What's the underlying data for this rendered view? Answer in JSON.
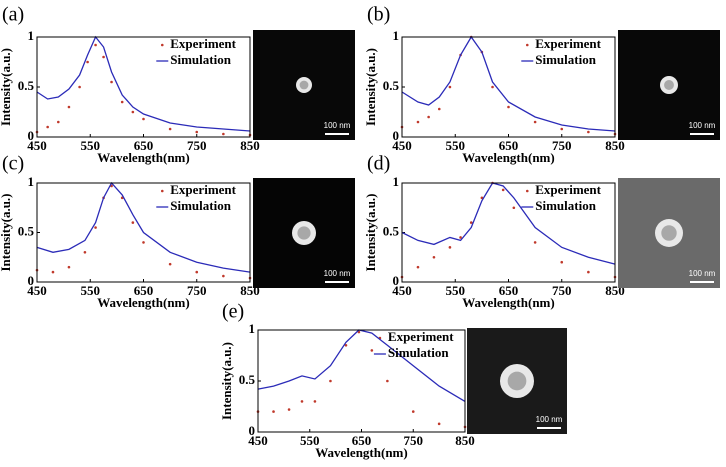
{
  "chart_data": [
    {
      "type": "line",
      "panel_label": "(a)",
      "xlabel": "Wavelength(nm)",
      "ylabel": "Intensity(a.u.)",
      "xlim": [
        450,
        850
      ],
      "xticks": [
        450,
        550,
        650,
        750,
        850
      ],
      "ylim": [
        0,
        1
      ],
      "yticks": [
        0,
        0.5,
        1
      ],
      "image_scale_label": "100 nm",
      "series": [
        {
          "name": "Experiment",
          "color": "#c0392b",
          "mode": "markers",
          "x": [
            450,
            470,
            490,
            510,
            530,
            545,
            560,
            575,
            590,
            610,
            630,
            650,
            700,
            750,
            800,
            850
          ],
          "values": [
            0.05,
            0.1,
            0.15,
            0.3,
            0.5,
            0.75,
            0.92,
            0.8,
            0.55,
            0.35,
            0.25,
            0.18,
            0.08,
            0.05,
            0.03,
            0.02
          ]
        },
        {
          "name": "Simulation",
          "color": "#2b2bb8",
          "mode": "lines",
          "x": [
            450,
            470,
            490,
            510,
            530,
            545,
            560,
            575,
            590,
            610,
            630,
            650,
            700,
            750,
            800,
            850
          ],
          "values": [
            0.45,
            0.38,
            0.4,
            0.48,
            0.62,
            0.82,
            1,
            0.9,
            0.65,
            0.42,
            0.3,
            0.23,
            0.14,
            0.1,
            0.08,
            0.06
          ]
        }
      ]
    },
    {
      "type": "line",
      "panel_label": "(b)",
      "xlabel": "Wavelength(nm)",
      "ylabel": "Intensity(a.u.)",
      "xlim": [
        450,
        850
      ],
      "xticks": [
        450,
        550,
        650,
        750,
        850
      ],
      "ylim": [
        0,
        1
      ],
      "yticks": [
        0,
        0.5,
        1
      ],
      "image_scale_label": "100 nm",
      "series": [
        {
          "name": "Experiment",
          "color": "#c0392b",
          "mode": "markers",
          "x": [
            450,
            480,
            500,
            520,
            540,
            560,
            580,
            600,
            620,
            650,
            700,
            750,
            800,
            850
          ],
          "values": [
            0.1,
            0.15,
            0.2,
            0.28,
            0.5,
            0.82,
            1,
            0.85,
            0.5,
            0.3,
            0.15,
            0.08,
            0.05,
            0.03
          ]
        },
        {
          "name": "Simulation",
          "color": "#2b2bb8",
          "mode": "lines",
          "x": [
            450,
            480,
            500,
            520,
            540,
            560,
            580,
            600,
            620,
            650,
            700,
            750,
            800,
            850
          ],
          "values": [
            0.45,
            0.35,
            0.32,
            0.4,
            0.55,
            0.82,
            1,
            0.85,
            0.55,
            0.35,
            0.2,
            0.12,
            0.08,
            0.06
          ]
        }
      ]
    },
    {
      "type": "line",
      "panel_label": "(c)",
      "xlabel": "Wavelength(nm)",
      "ylabel": "Intensity(a.u.)",
      "xlim": [
        450,
        850
      ],
      "xticks": [
        450,
        550,
        650,
        750,
        850
      ],
      "ylim": [
        0,
        1
      ],
      "yticks": [
        0,
        0.5,
        1
      ],
      "image_scale_label": "100 nm",
      "series": [
        {
          "name": "Experiment",
          "color": "#c0392b",
          "mode": "markers",
          "x": [
            450,
            480,
            510,
            540,
            560,
            575,
            590,
            610,
            630,
            650,
            700,
            750,
            800,
            850
          ],
          "values": [
            0.12,
            0.1,
            0.15,
            0.3,
            0.55,
            0.85,
            0.97,
            0.85,
            0.6,
            0.4,
            0.18,
            0.1,
            0.06,
            0.04
          ]
        },
        {
          "name": "Simulation",
          "color": "#2b2bb8",
          "mode": "lines",
          "x": [
            450,
            480,
            510,
            540,
            560,
            575,
            590,
            610,
            630,
            650,
            700,
            750,
            800,
            850
          ],
          "values": [
            0.35,
            0.3,
            0.33,
            0.42,
            0.6,
            0.85,
            1,
            0.88,
            0.68,
            0.5,
            0.3,
            0.2,
            0.14,
            0.1
          ]
        }
      ]
    },
    {
      "type": "line",
      "panel_label": "(d)",
      "xlabel": "Wavelength(nm)",
      "ylabel": "Intensity(a.u.)",
      "xlim": [
        450,
        850
      ],
      "xticks": [
        450,
        550,
        650,
        750,
        850
      ],
      "ylim": [
        0,
        1
      ],
      "yticks": [
        0,
        0.5,
        1
      ],
      "image_scale_label": "100 nm",
      "series": [
        {
          "name": "Experiment",
          "color": "#c0392b",
          "mode": "markers",
          "x": [
            450,
            480,
            510,
            540,
            560,
            580,
            600,
            620,
            640,
            660,
            700,
            750,
            800,
            850
          ],
          "values": [
            0.05,
            0.15,
            0.25,
            0.35,
            0.45,
            0.6,
            0.85,
            1,
            0.93,
            0.75,
            0.4,
            0.2,
            0.1,
            0.05
          ]
        },
        {
          "name": "Simulation",
          "color": "#2b2bb8",
          "mode": "lines",
          "x": [
            450,
            480,
            510,
            540,
            560,
            580,
            600,
            620,
            640,
            660,
            700,
            750,
            800,
            850
          ],
          "values": [
            0.5,
            0.42,
            0.38,
            0.45,
            0.42,
            0.55,
            0.82,
            1,
            0.97,
            0.85,
            0.55,
            0.35,
            0.25,
            0.18
          ]
        }
      ]
    },
    {
      "type": "line",
      "panel_label": "(e)",
      "xlabel": "Wavelength(nm)",
      "ylabel": "Intensity(a.u.)",
      "xlim": [
        450,
        850
      ],
      "xticks": [
        450,
        550,
        650,
        750,
        850
      ],
      "ylim": [
        0,
        1
      ],
      "yticks": [
        0,
        0.5,
        1
      ],
      "image_scale_label": "100 nm",
      "series": [
        {
          "name": "Experiment",
          "color": "#c0392b",
          "mode": "markers",
          "x": [
            450,
            480,
            510,
            535,
            560,
            590,
            620,
            645,
            670,
            700,
            750,
            800,
            850
          ],
          "values": [
            0.2,
            0.2,
            0.22,
            0.3,
            0.3,
            0.5,
            0.85,
            0.98,
            0.8,
            0.5,
            0.2,
            0.08,
            0.05
          ]
        },
        {
          "name": "Simulation",
          "color": "#2b2bb8",
          "mode": "lines",
          "x": [
            450,
            480,
            510,
            535,
            560,
            590,
            620,
            645,
            670,
            700,
            750,
            800,
            850
          ],
          "values": [
            0.42,
            0.45,
            0.5,
            0.55,
            0.52,
            0.65,
            0.88,
            1,
            0.97,
            0.85,
            0.65,
            0.45,
            0.3
          ]
        }
      ]
    }
  ]
}
